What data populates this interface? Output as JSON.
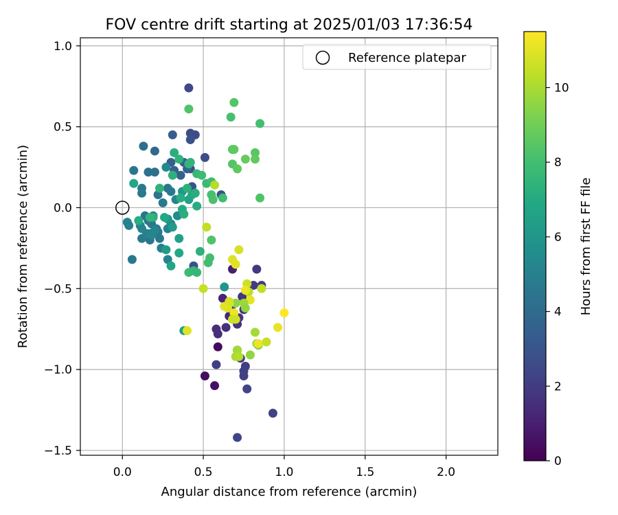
{
  "chart_data": {
    "type": "scatter",
    "title": "FOV centre drift starting at 2025/01/03 17:36:54",
    "xlabel": "Angular distance from reference (arcmin)",
    "ylabel": "Rotation from reference (arcmin)",
    "xlim": [
      -0.26,
      2.32
    ],
    "ylim": [
      -1.53,
      1.05
    ],
    "xticks": [
      0.0,
      0.5,
      1.0,
      1.5,
      2.0
    ],
    "xtick_labels": [
      "0.0",
      "0.5",
      "1.0",
      "1.5",
      "2.0"
    ],
    "yticks": [
      -1.5,
      -1.0,
      -0.5,
      0.0,
      0.5,
      1.0
    ],
    "ytick_labels": [
      "−1.5",
      "−1.0",
      "−0.5",
      "0.0",
      "0.5",
      "1.0"
    ],
    "grid": true,
    "legend": {
      "location": "upper right",
      "entries": [
        "Reference platepar"
      ]
    },
    "reference_point": {
      "x": 0.0,
      "y": 0.0,
      "label": "Reference platepar"
    },
    "colorbar": {
      "label": "Hours from first FF file",
      "colormap": "viridis",
      "range": [
        0,
        11.5
      ],
      "ticks": [
        0,
        2,
        4,
        6,
        8,
        10
      ],
      "tick_labels": [
        "0",
        "2",
        "4",
        "6",
        "8",
        "10"
      ]
    },
    "points": [
      {
        "x": 0.59,
        "y": -0.86,
        "t": 0.3
      },
      {
        "x": 0.51,
        "y": -1.04,
        "t": 0.4
      },
      {
        "x": 0.57,
        "y": -1.1,
        "t": 0.5
      },
      {
        "x": 0.68,
        "y": -0.38,
        "t": 1.0
      },
      {
        "x": 0.62,
        "y": -0.56,
        "t": 1.2
      },
      {
        "x": 0.66,
        "y": -0.67,
        "t": 1.3
      },
      {
        "x": 0.58,
        "y": -0.75,
        "t": 1.5
      },
      {
        "x": 0.59,
        "y": -0.78,
        "t": 1.5
      },
      {
        "x": 0.64,
        "y": -0.74,
        "t": 1.6
      },
      {
        "x": 0.71,
        "y": -0.72,
        "t": 1.7
      },
      {
        "x": 0.72,
        "y": -0.68,
        "t": 1.8
      },
      {
        "x": 0.75,
        "y": -0.63,
        "t": 1.7
      },
      {
        "x": 0.68,
        "y": -0.6,
        "t": 1.9
      },
      {
        "x": 0.74,
        "y": -0.55,
        "t": 1.8
      },
      {
        "x": 0.81,
        "y": -0.48,
        "t": 2.0
      },
      {
        "x": 0.83,
        "y": -0.38,
        "t": 1.9
      },
      {
        "x": 0.86,
        "y": -0.48,
        "t": 2.0
      },
      {
        "x": 0.58,
        "y": -0.97,
        "t": 2.1
      },
      {
        "x": 0.73,
        "y": -0.93,
        "t": 2.0
      },
      {
        "x": 0.76,
        "y": -0.98,
        "t": 2.1
      },
      {
        "x": 0.75,
        "y": -1.01,
        "t": 2.2
      },
      {
        "x": 0.75,
        "y": -1.04,
        "t": 2.2
      },
      {
        "x": 0.77,
        "y": -1.12,
        "t": 2.3
      },
      {
        "x": 0.71,
        "y": -1.42,
        "t": 2.3
      },
      {
        "x": 0.93,
        "y": -1.27,
        "t": 2.2
      },
      {
        "x": 0.71,
        "y": -0.88,
        "t": 2.4
      },
      {
        "x": 0.41,
        "y": 0.74,
        "t": 2.5
      },
      {
        "x": 0.45,
        "y": 0.45,
        "t": 2.6
      },
      {
        "x": 0.42,
        "y": 0.46,
        "t": 2.7
      },
      {
        "x": 0.42,
        "y": 0.42,
        "t": 2.8
      },
      {
        "x": 0.51,
        "y": 0.31,
        "t": 2.7
      },
      {
        "x": 0.42,
        "y": 0.24,
        "t": 2.8
      },
      {
        "x": 0.61,
        "y": 0.08,
        "t": 2.9
      },
      {
        "x": 0.44,
        "y": -0.36,
        "t": 2.8
      },
      {
        "x": 0.43,
        "y": 0.13,
        "t": 3.0
      },
      {
        "x": 0.31,
        "y": 0.45,
        "t": 3.4
      },
      {
        "x": 0.3,
        "y": 0.28,
        "t": 3.5
      },
      {
        "x": 0.32,
        "y": 0.23,
        "t": 3.6
      },
      {
        "x": 0.36,
        "y": 0.2,
        "t": 3.6
      },
      {
        "x": 0.38,
        "y": 0.28,
        "t": 3.5
      },
      {
        "x": 0.4,
        "y": 0.24,
        "t": 3.7
      },
      {
        "x": 0.2,
        "y": 0.35,
        "t": 3.9
      },
      {
        "x": 0.13,
        "y": 0.38,
        "t": 4.2
      },
      {
        "x": 0.16,
        "y": 0.22,
        "t": 4.3
      },
      {
        "x": 0.2,
        "y": 0.22,
        "t": 4.2
      },
      {
        "x": 0.07,
        "y": 0.23,
        "t": 4.5
      },
      {
        "x": 0.22,
        "y": 0.08,
        "t": 4.4
      },
      {
        "x": 0.25,
        "y": 0.03,
        "t": 4.6
      },
      {
        "x": 0.28,
        "y": 0.12,
        "t": 4.5
      },
      {
        "x": 0.3,
        "y": 0.1,
        "t": 4.6
      },
      {
        "x": 0.12,
        "y": 0.12,
        "t": 4.7
      },
      {
        "x": 0.12,
        "y": 0.09,
        "t": 4.7
      },
      {
        "x": 0.14,
        "y": -0.05,
        "t": 4.4
      },
      {
        "x": 0.16,
        "y": -0.08,
        "t": 4.5
      },
      {
        "x": 0.18,
        "y": -0.1,
        "t": 4.6
      },
      {
        "x": 0.19,
        "y": -0.05,
        "t": 4.8
      },
      {
        "x": 0.21,
        "y": -0.13,
        "t": 4.6
      },
      {
        "x": 0.22,
        "y": -0.15,
        "t": 4.7
      },
      {
        "x": 0.23,
        "y": -0.19,
        "t": 4.6
      },
      {
        "x": 0.17,
        "y": -0.16,
        "t": 4.8
      },
      {
        "x": 0.17,
        "y": -0.2,
        "t": 4.6
      },
      {
        "x": 0.16,
        "y": -0.18,
        "t": 4.4
      },
      {
        "x": 0.12,
        "y": -0.19,
        "t": 4.7
      },
      {
        "x": 0.06,
        "y": -0.32,
        "t": 4.6
      },
      {
        "x": 0.03,
        "y": -0.09,
        "t": 5.0
      },
      {
        "x": 0.04,
        "y": -0.11,
        "t": 4.9
      },
      {
        "x": 0.11,
        "y": -0.11,
        "t": 5.1
      },
      {
        "x": 0.12,
        "y": -0.13,
        "t": 5.2
      },
      {
        "x": 0.15,
        "y": -0.16,
        "t": 5.0
      },
      {
        "x": 0.18,
        "y": -0.17,
        "t": 5.3
      },
      {
        "x": 0.2,
        "y": -0.14,
        "t": 5.2
      },
      {
        "x": 0.24,
        "y": -0.25,
        "t": 5.0
      },
      {
        "x": 0.28,
        "y": -0.13,
        "t": 5.1
      },
      {
        "x": 0.3,
        "y": -0.1,
        "t": 5.2
      },
      {
        "x": 0.28,
        "y": -0.32,
        "t": 5.1
      },
      {
        "x": 0.34,
        "y": -0.05,
        "t": 5.5
      },
      {
        "x": 0.33,
        "y": 0.05,
        "t": 5.2
      },
      {
        "x": 0.27,
        "y": 0.25,
        "t": 5.4
      },
      {
        "x": 0.28,
        "y": -0.07,
        "t": 6.0
      },
      {
        "x": 0.31,
        "y": -0.12,
        "t": 6.2
      },
      {
        "x": 0.27,
        "y": -0.26,
        "t": 6.3
      },
      {
        "x": 0.35,
        "y": -0.19,
        "t": 6.5
      },
      {
        "x": 0.37,
        "y": 0.1,
        "t": 6.1
      },
      {
        "x": 0.63,
        "y": -0.49,
        "t": 6.0
      },
      {
        "x": 0.38,
        "y": -0.76,
        "t": 6.5
      },
      {
        "x": 0.3,
        "y": -0.36,
        "t": 6.8
      },
      {
        "x": 0.35,
        "y": -0.28,
        "t": 6.9
      },
      {
        "x": 0.41,
        "y": 0.05,
        "t": 6.6
      },
      {
        "x": 0.43,
        "y": 0.08,
        "t": 6.8
      },
      {
        "x": 0.37,
        "y": -0.01,
        "t": 7.0
      },
      {
        "x": 0.38,
        "y": -0.04,
        "t": 7.2
      },
      {
        "x": 0.36,
        "y": 0.06,
        "t": 7.1
      },
      {
        "x": 0.4,
        "y": 0.12,
        "t": 7.3
      },
      {
        "x": 0.45,
        "y": 0.09,
        "t": 7.2
      },
      {
        "x": 0.46,
        "y": 0.01,
        "t": 7.1
      },
      {
        "x": 0.42,
        "y": 0.28,
        "t": 7.4
      },
      {
        "x": 0.41,
        "y": 0.27,
        "t": 7.5
      },
      {
        "x": 0.32,
        "y": 0.34,
        "t": 7.2
      },
      {
        "x": 0.35,
        "y": 0.3,
        "t": 7.4
      },
      {
        "x": 0.31,
        "y": 0.2,
        "t": 7.3
      },
      {
        "x": 0.19,
        "y": -0.06,
        "t": 7.2
      },
      {
        "x": 0.17,
        "y": -0.06,
        "t": 7.5
      },
      {
        "x": 0.23,
        "y": 0.12,
        "t": 7.4
      },
      {
        "x": 0.1,
        "y": -0.08,
        "t": 7.1
      },
      {
        "x": 0.07,
        "y": 0.15,
        "t": 6.8
      },
      {
        "x": 0.26,
        "y": -0.06,
        "t": 6.9
      },
      {
        "x": 0.48,
        "y": -0.27,
        "t": 7.3
      },
      {
        "x": 0.46,
        "y": 0.21,
        "t": 7.6
      },
      {
        "x": 0.49,
        "y": 0.2,
        "t": 7.8
      },
      {
        "x": 0.52,
        "y": 0.15,
        "t": 7.7
      },
      {
        "x": 0.55,
        "y": 0.16,
        "t": 7.9
      },
      {
        "x": 0.55,
        "y": 0.08,
        "t": 8.1
      },
      {
        "x": 0.56,
        "y": 0.05,
        "t": 8.2
      },
      {
        "x": 0.62,
        "y": 0.06,
        "t": 7.9
      },
      {
        "x": 0.54,
        "y": -0.31,
        "t": 8.0
      },
      {
        "x": 0.53,
        "y": -0.34,
        "t": 7.9
      },
      {
        "x": 0.55,
        "y": -0.2,
        "t": 8.3
      },
      {
        "x": 0.41,
        "y": -0.4,
        "t": 7.8
      },
      {
        "x": 0.44,
        "y": -0.39,
        "t": 7.7
      },
      {
        "x": 0.46,
        "y": -0.4,
        "t": 7.6
      },
      {
        "x": 0.41,
        "y": 0.61,
        "t": 8.3
      },
      {
        "x": 0.69,
        "y": 0.65,
        "t": 8.4
      },
      {
        "x": 0.67,
        "y": 0.56,
        "t": 8.1
      },
      {
        "x": 0.85,
        "y": 0.52,
        "t": 8.0
      },
      {
        "x": 0.68,
        "y": 0.36,
        "t": 8.5
      },
      {
        "x": 0.69,
        "y": 0.36,
        "t": 8.6
      },
      {
        "x": 0.76,
        "y": 0.3,
        "t": 8.8
      },
      {
        "x": 0.82,
        "y": 0.34,
        "t": 8.5
      },
      {
        "x": 0.82,
        "y": 0.3,
        "t": 8.7
      },
      {
        "x": 0.68,
        "y": 0.27,
        "t": 8.4
      },
      {
        "x": 0.71,
        "y": 0.24,
        "t": 8.6
      },
      {
        "x": 0.85,
        "y": 0.06,
        "t": 8.3
      },
      {
        "x": 0.52,
        "y": -0.12,
        "t": 10.4
      },
      {
        "x": 0.57,
        "y": 0.14,
        "t": 10.2
      },
      {
        "x": 0.5,
        "y": -0.5,
        "t": 10.5
      },
      {
        "x": 0.72,
        "y": -0.26,
        "t": 10.8
      },
      {
        "x": 0.68,
        "y": -0.32,
        "t": 10.9
      },
      {
        "x": 0.7,
        "y": -0.35,
        "t": 11.0
      },
      {
        "x": 0.77,
        "y": -0.47,
        "t": 10.6
      },
      {
        "x": 0.78,
        "y": -0.52,
        "t": 10.3
      },
      {
        "x": 0.76,
        "y": -0.51,
        "t": 11.2
      },
      {
        "x": 0.79,
        "y": -0.57,
        "t": 11.1
      },
      {
        "x": 0.86,
        "y": -0.5,
        "t": 10.4
      },
      {
        "x": 0.7,
        "y": -0.59,
        "t": 9.5
      },
      {
        "x": 0.75,
        "y": -0.59,
        "t": 9.8
      },
      {
        "x": 0.76,
        "y": -0.62,
        "t": 9.6
      },
      {
        "x": 0.66,
        "y": -0.59,
        "t": 11.3
      },
      {
        "x": 0.65,
        "y": -0.62,
        "t": 10.9
      },
      {
        "x": 0.63,
        "y": -0.61,
        "t": 11.0
      },
      {
        "x": 0.66,
        "y": -0.58,
        "t": 10.8
      },
      {
        "x": 0.69,
        "y": -0.65,
        "t": 11.2
      },
      {
        "x": 0.7,
        "y": -0.69,
        "t": 10.7
      },
      {
        "x": 0.68,
        "y": -0.69,
        "t": 10.6
      },
      {
        "x": 0.82,
        "y": -0.77,
        "t": 9.9
      },
      {
        "x": 0.83,
        "y": -0.84,
        "t": 9.7
      },
      {
        "x": 0.84,
        "y": -0.85,
        "t": 9.3
      },
      {
        "x": 0.84,
        "y": -0.84,
        "t": 11.2
      },
      {
        "x": 0.89,
        "y": -0.83,
        "t": 10.5
      },
      {
        "x": 0.96,
        "y": -0.74,
        "t": 11.1
      },
      {
        "x": 1.0,
        "y": -0.65,
        "t": 11.5
      },
      {
        "x": 0.71,
        "y": -0.88,
        "t": 9.9
      },
      {
        "x": 0.7,
        "y": -0.92,
        "t": 10.0
      },
      {
        "x": 0.72,
        "y": -0.92,
        "t": 10.2
      },
      {
        "x": 0.79,
        "y": -0.91,
        "t": 9.6
      },
      {
        "x": 0.4,
        "y": -0.76,
        "t": 11.0
      }
    ]
  }
}
